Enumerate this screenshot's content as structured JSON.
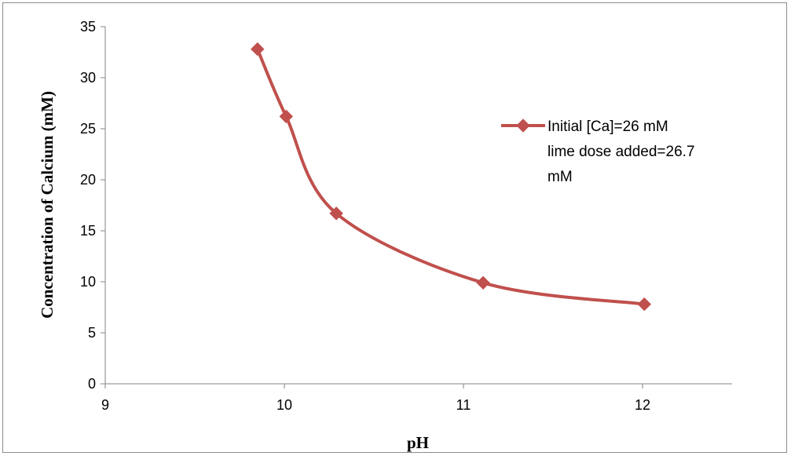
{
  "chart_data": {
    "type": "line",
    "smooth": true,
    "xlabel": "pH",
    "ylabel": "Concentration of Calcium (mM)",
    "xlim": [
      9,
      12.5
    ],
    "ylim": [
      0,
      35
    ],
    "x_ticks": [
      9,
      10,
      11,
      12
    ],
    "y_ticks": [
      0,
      5,
      10,
      15,
      20,
      25,
      30,
      35
    ],
    "grid": false,
    "legend_position": "right",
    "series": [
      {
        "name": "Initial [Ca]=26 mM lime dose added=26.7 mM",
        "legend_lines": [
          "Initial [Ca]=26 mM",
          "lime dose added=26.7",
          "mM"
        ],
        "color": "#c0504d",
        "marker": "diamond",
        "x": [
          9.85,
          10.01,
          10.29,
          11.11,
          12.01
        ],
        "y": [
          32.8,
          26.2,
          16.7,
          9.9,
          7.8
        ]
      }
    ]
  }
}
